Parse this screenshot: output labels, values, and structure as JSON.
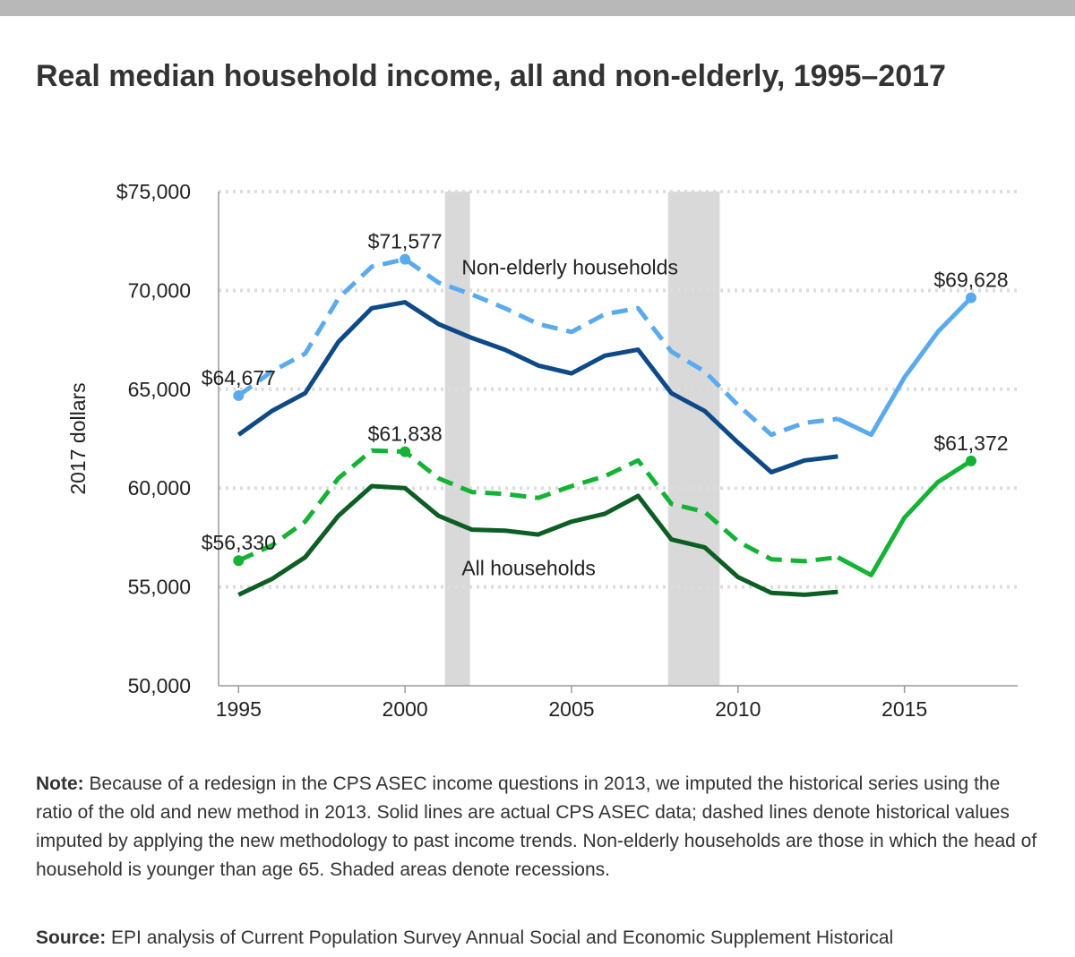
{
  "header": {
    "title": "Real median household income, all and non-elderly, 1995–2017"
  },
  "footer": {
    "note_label": "Note:",
    "note_text": "Because of a redesign in the CPS ASEC income questions in 2013, we imputed the historical series using the ratio of the old and new method in 2013. Solid lines are actual CPS ASEC data; dashed lines denote historical values imputed by applying the new methodology to past income trends. Non-elderly households are those in which the head of household is younger than age 65. Shaded areas denote recessions.",
    "source_label": "Source:",
    "source_text": "EPI analysis of Current Population Survey Annual Social and Economic Supplement Historical"
  },
  "colors": {
    "non_elderly_imputed": "#5aaaf0",
    "non_elderly_actual": "#0d4a87",
    "all_imputed": "#14b235",
    "all_actual": "#0d5e24",
    "recession": "#d9d9d9",
    "grid": "#dddddd",
    "axis": "#999999"
  },
  "chart_data": {
    "type": "line",
    "title": "Real median household income, all and non-elderly, 1995–2017",
    "xlabel": "",
    "ylabel": "2017 dollars",
    "xlim": [
      1994.4,
      2018.4
    ],
    "ylim": [
      50000,
      75000
    ],
    "x_ticks": [
      1995,
      2000,
      2005,
      2010,
      2015
    ],
    "y_ticks": [
      50000,
      55000,
      60000,
      65000,
      70000,
      75000
    ],
    "y_tick_labels": [
      "50,000",
      "55,000",
      "60,000",
      "65,000",
      "70,000",
      "$75,000"
    ],
    "grid": "horizontal dotted",
    "recessions": [
      [
        2001.2,
        2001.95
      ],
      [
        2007.9,
        2009.45
      ]
    ],
    "x": [
      1995,
      1996,
      1997,
      1998,
      1999,
      2000,
      2001,
      2002,
      2003,
      2004,
      2005,
      2006,
      2007,
      2008,
      2009,
      2010,
      2011,
      2012,
      2013,
      2014,
      2015,
      2016,
      2017
    ],
    "series": [
      {
        "name": "Non-elderly households (imputed, new method)",
        "style": "dashed",
        "color": "#5aaaf0",
        "values": [
          64677,
          65900,
          66800,
          69600,
          71200,
          71577,
          70400,
          69800,
          69100,
          68300,
          67900,
          68800,
          69100,
          66900,
          65900,
          64200,
          62700,
          63300,
          63500,
          null,
          null,
          null,
          null
        ]
      },
      {
        "name": "Non-elderly households (actual CPS ASEC)",
        "style": "solid",
        "color": "#0d4a87",
        "values": [
          62700,
          63900,
          64800,
          67400,
          69100,
          69400,
          68300,
          67600,
          67000,
          66200,
          65800,
          66700,
          67000,
          64800,
          63900,
          62300,
          60800,
          61400,
          61600,
          null,
          null,
          null,
          null
        ]
      },
      {
        "name": "Non-elderly households (actual CPS ASEC, redesigned questions)",
        "style": "solid",
        "color": "#5aaaf0",
        "values": [
          null,
          null,
          null,
          null,
          null,
          null,
          null,
          null,
          null,
          null,
          null,
          null,
          null,
          null,
          null,
          null,
          null,
          null,
          63500,
          62700,
          65600,
          67900,
          69628
        ]
      },
      {
        "name": "All households (imputed, new method)",
        "style": "dashed",
        "color": "#14b235",
        "values": [
          56330,
          57100,
          58300,
          60500,
          61900,
          61838,
          60500,
          59800,
          59700,
          59500,
          60100,
          60600,
          61400,
          59200,
          58800,
          57300,
          56400,
          56300,
          56500,
          null,
          null,
          null,
          null
        ]
      },
      {
        "name": "All households (actual CPS ASEC)",
        "style": "solid",
        "color": "#0d5e24",
        "values": [
          54600,
          55400,
          56500,
          58600,
          60100,
          60000,
          58600,
          57900,
          57850,
          57650,
          58300,
          58700,
          59600,
          57400,
          57000,
          55500,
          54700,
          54600,
          54750,
          null,
          null,
          null,
          null
        ]
      },
      {
        "name": "All households (actual CPS ASEC, redesigned questions)",
        "style": "solid",
        "color": "#14b235",
        "values": [
          null,
          null,
          null,
          null,
          null,
          null,
          null,
          null,
          null,
          null,
          null,
          null,
          null,
          null,
          null,
          null,
          null,
          null,
          56500,
          55600,
          58500,
          60300,
          61372
        ]
      }
    ],
    "annotations": [
      {
        "text": "Non-elderly households",
        "x": 2001.7,
        "y": 70800,
        "anchor": "start"
      },
      {
        "text": "All households",
        "x": 2001.7,
        "y": 55600,
        "anchor": "start"
      }
    ],
    "point_labels": [
      {
        "text": "$64,677",
        "x": 1995,
        "y": 64677,
        "color": "#5aaaf0",
        "anchor": "middle"
      },
      {
        "text": "$71,577",
        "x": 2000,
        "y": 71577,
        "color": "#5aaaf0",
        "anchor": "middle"
      },
      {
        "text": "$69,628",
        "x": 2017,
        "y": 69628,
        "color": "#5aaaf0",
        "anchor": "middle"
      },
      {
        "text": "$56,330",
        "x": 1995,
        "y": 56330,
        "color": "#14b235",
        "anchor": "middle"
      },
      {
        "text": "$61,838",
        "x": 2000,
        "y": 61838,
        "color": "#14b235",
        "anchor": "middle"
      },
      {
        "text": "$61,372",
        "x": 2017,
        "y": 61372,
        "color": "#14b235",
        "anchor": "middle"
      }
    ]
  }
}
